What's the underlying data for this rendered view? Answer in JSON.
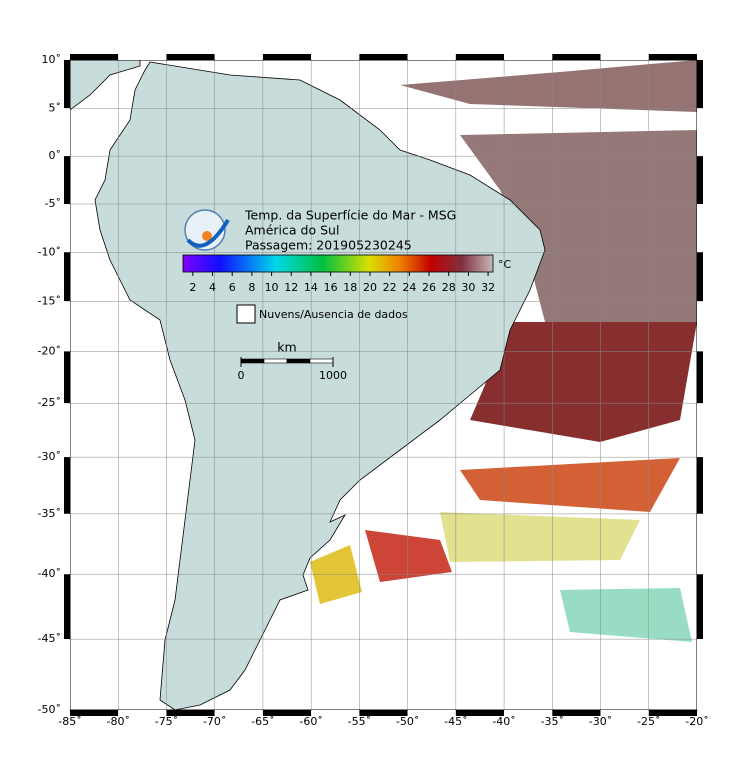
{
  "header": {
    "title": "Temp. da Superfície do Mar - MSG",
    "region": "América do Sul",
    "pass": "Passagem: 201905230245"
  },
  "colorbar": {
    "unit": "°C",
    "range": [
      1,
      32.5
    ],
    "ticks": [
      2,
      4,
      6,
      8,
      10,
      12,
      14,
      16,
      18,
      20,
      22,
      24,
      26,
      28,
      30,
      32
    ]
  },
  "legend": {
    "label": "Nuvens/Ausencia de dados"
  },
  "scale_bar": {
    "unit": "km",
    "ticks": [
      0,
      1000
    ]
  },
  "map": {
    "lon_range": [
      -85,
      -20
    ],
    "lat_range": [
      -50,
      10
    ],
    "lon_ticks": [
      {
        "value": -85,
        "label": "-85˚"
      },
      {
        "value": -80,
        "label": "-80˚"
      },
      {
        "value": -75,
        "label": "-75˚"
      },
      {
        "value": -70,
        "label": "-70˚"
      },
      {
        "value": -65,
        "label": "-65˚"
      },
      {
        "value": -60,
        "label": "-60˚"
      },
      {
        "value": -55,
        "label": "-55˚"
      },
      {
        "value": -50,
        "label": "-50˚"
      },
      {
        "value": -45,
        "label": "-45˚"
      },
      {
        "value": -40,
        "label": "-40˚"
      },
      {
        "value": -35,
        "label": "-35˚"
      },
      {
        "value": -30,
        "label": "-30˚"
      },
      {
        "value": -25,
        "label": "-25˚"
      },
      {
        "value": -20,
        "label": "-20˚"
      }
    ],
    "lat_ticks": [
      {
        "value": 10,
        "label": "10˚"
      },
      {
        "value": 5,
        "label": "5˚"
      },
      {
        "value": 0,
        "label": "0˚"
      },
      {
        "value": -5,
        "label": "-5˚"
      },
      {
        "value": -10,
        "label": "-10˚"
      },
      {
        "value": -15,
        "label": "-15˚"
      },
      {
        "value": -20,
        "label": "-20˚"
      },
      {
        "value": -25,
        "label": "-25˚"
      },
      {
        "value": -30,
        "label": "-30˚"
      },
      {
        "value": -35,
        "label": "-35˚"
      },
      {
        "value": -40,
        "label": "-40˚"
      },
      {
        "value": -45,
        "label": "-45˚"
      },
      {
        "value": -50,
        "label": "-50˚"
      }
    ]
  }
}
